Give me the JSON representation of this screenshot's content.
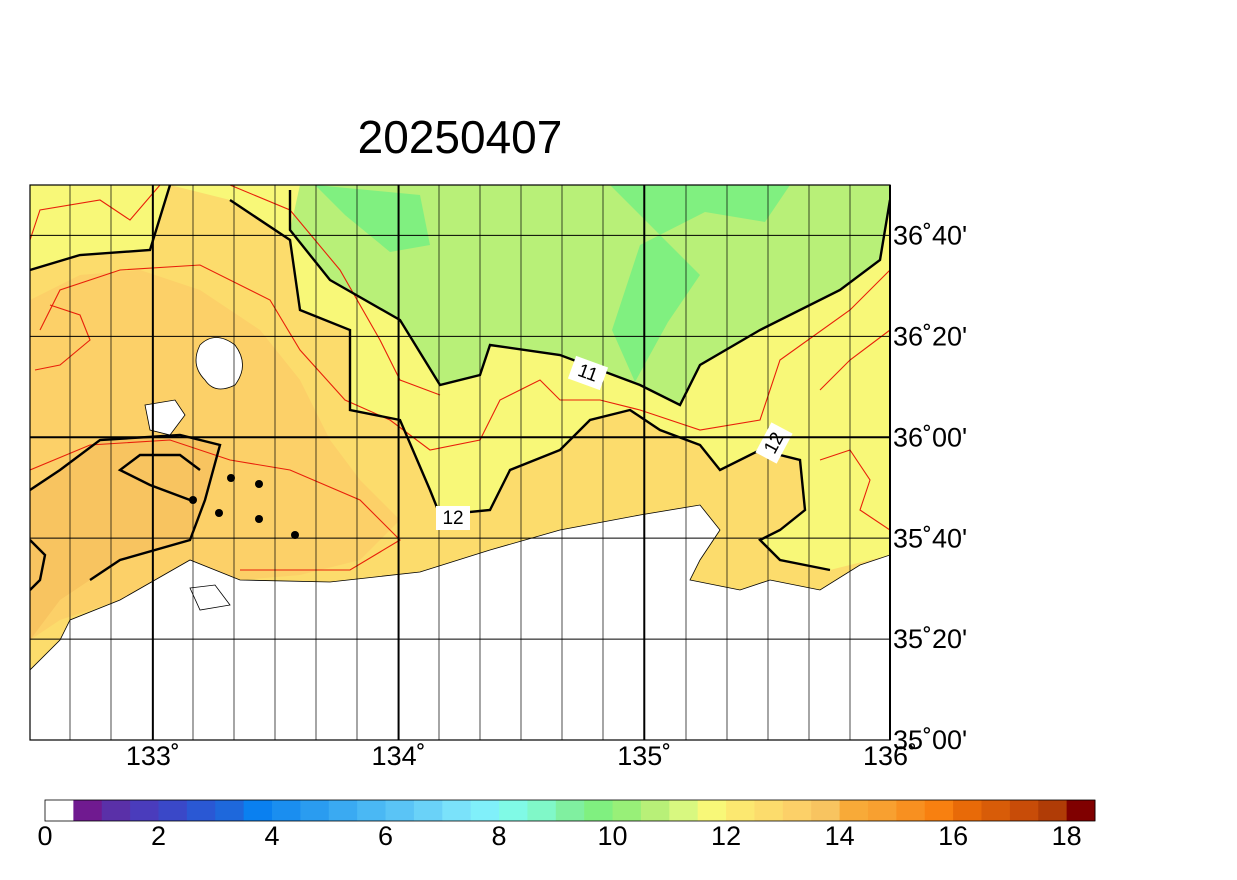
{
  "title": "20250407",
  "map": {
    "xlim": [
      132.5,
      136
    ],
    "ylim": [
      35,
      36.8333
    ],
    "xticks": [
      {
        "value": 133,
        "label": "133˚"
      },
      {
        "value": 134,
        "label": "134˚"
      },
      {
        "value": 135,
        "label": "135˚"
      },
      {
        "value": 136,
        "label": "136˚"
      }
    ],
    "yticks": [
      {
        "value": 35,
        "label": "35˚00'"
      },
      {
        "value": 35.3333,
        "label": "35˚20'"
      },
      {
        "value": 35.6667,
        "label": "35˚40'"
      },
      {
        "value": 36,
        "label": "36˚00'"
      },
      {
        "value": 36.3333,
        "label": "36˚20'"
      },
      {
        "value": 36.6667,
        "label": "36˚40'"
      }
    ],
    "contour_labels": [
      "11",
      "12",
      "12"
    ]
  },
  "colorbar": {
    "range": [
      0,
      18.5
    ],
    "ticks": [
      0,
      2,
      4,
      6,
      8,
      10,
      12,
      14,
      16,
      18
    ],
    "colors": [
      "#ffffff",
      "#701a90",
      "#5a30a8",
      "#4a3cbc",
      "#3a48c8",
      "#2a58d4",
      "#1e68dc",
      "#0a80f0",
      "#1a8ef0",
      "#2a9cf0",
      "#3aaaf2",
      "#4ab8f4",
      "#5ac4f6",
      "#6ad2f8",
      "#7ae2fa",
      "#80f0fa",
      "#80fae6",
      "#80f8c8",
      "#80f0a0",
      "#80f080",
      "#98f078",
      "#b8f078",
      "#d8f880",
      "#f8f878",
      "#fce870",
      "#fcdc6c",
      "#fcd068",
      "#f8c460",
      "#f8aa38",
      "#f8a030",
      "#f89020",
      "#f88010",
      "#e86a08",
      "#d85c08",
      "#c84c08",
      "#b03c06",
      "#800000"
    ]
  }
}
